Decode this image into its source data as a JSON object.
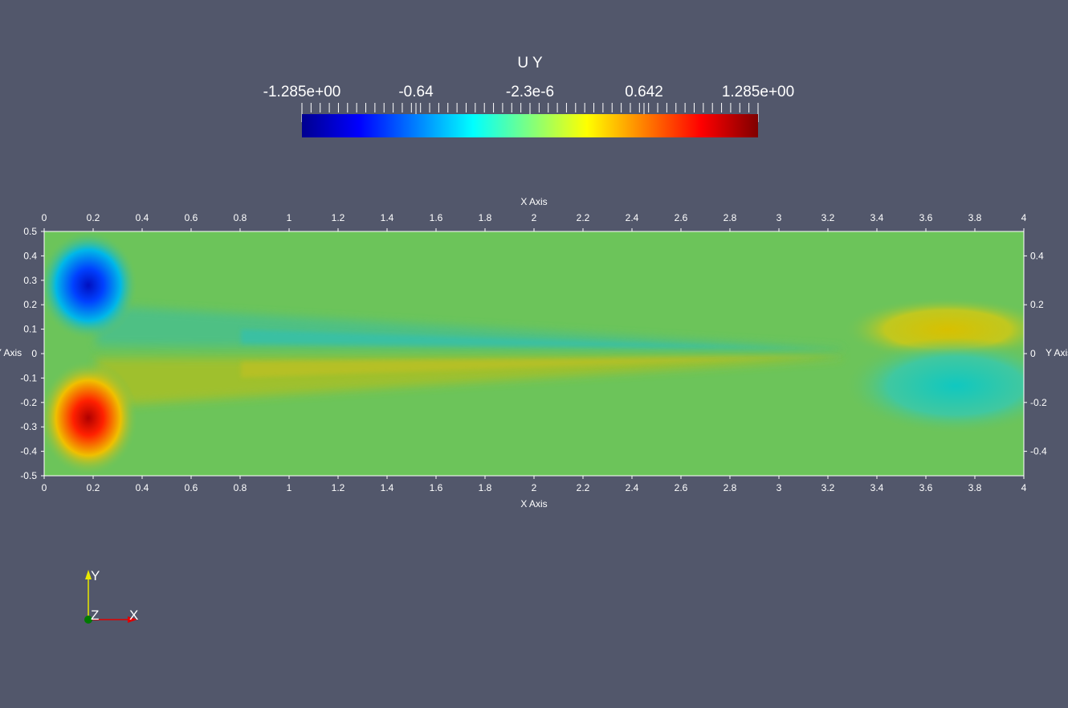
{
  "colorbar": {
    "title": "U Y",
    "labels": [
      "-1.285e+00",
      "-0.64",
      "-2.3e-6",
      "0.642",
      "1.285e+00"
    ],
    "range": [
      -1.285,
      1.285
    ],
    "colormap": "jet"
  },
  "plot": {
    "x_axis_title_top": "X Axis",
    "x_axis_title_bottom": "X Axis",
    "y_axis_title_left": "Y Axis",
    "y_axis_title_right": "Y Axis",
    "x_ticks": [
      "0",
      "0.2",
      "0.4",
      "0.6",
      "0.8",
      "1",
      "1.2",
      "1.4",
      "1.6",
      "1.8",
      "2",
      "2.2",
      "2.4",
      "2.6",
      "2.8",
      "3",
      "3.2",
      "3.4",
      "3.6",
      "3.8",
      "4"
    ],
    "y_ticks_left": [
      "0.5",
      "0.4",
      "0.3",
      "0.2",
      "0.1",
      "0",
      "-0.1",
      "-0.2",
      "-0.3",
      "-0.4",
      "-0.5"
    ],
    "y_ticks_right": [
      "0.4",
      "0.2",
      "0",
      "-0.2",
      "-0.4"
    ],
    "x_range": [
      0,
      4
    ],
    "y_range": [
      -0.5,
      0.5
    ]
  },
  "orientation": {
    "y_label": "Y",
    "z_label": "Z",
    "x_label": "X",
    "y_color": "#e8e800",
    "x_color": "#e00000",
    "z_color": "#007a00"
  },
  "colors": {
    "background": "#52576b",
    "field_base": "#6cc45a"
  }
}
